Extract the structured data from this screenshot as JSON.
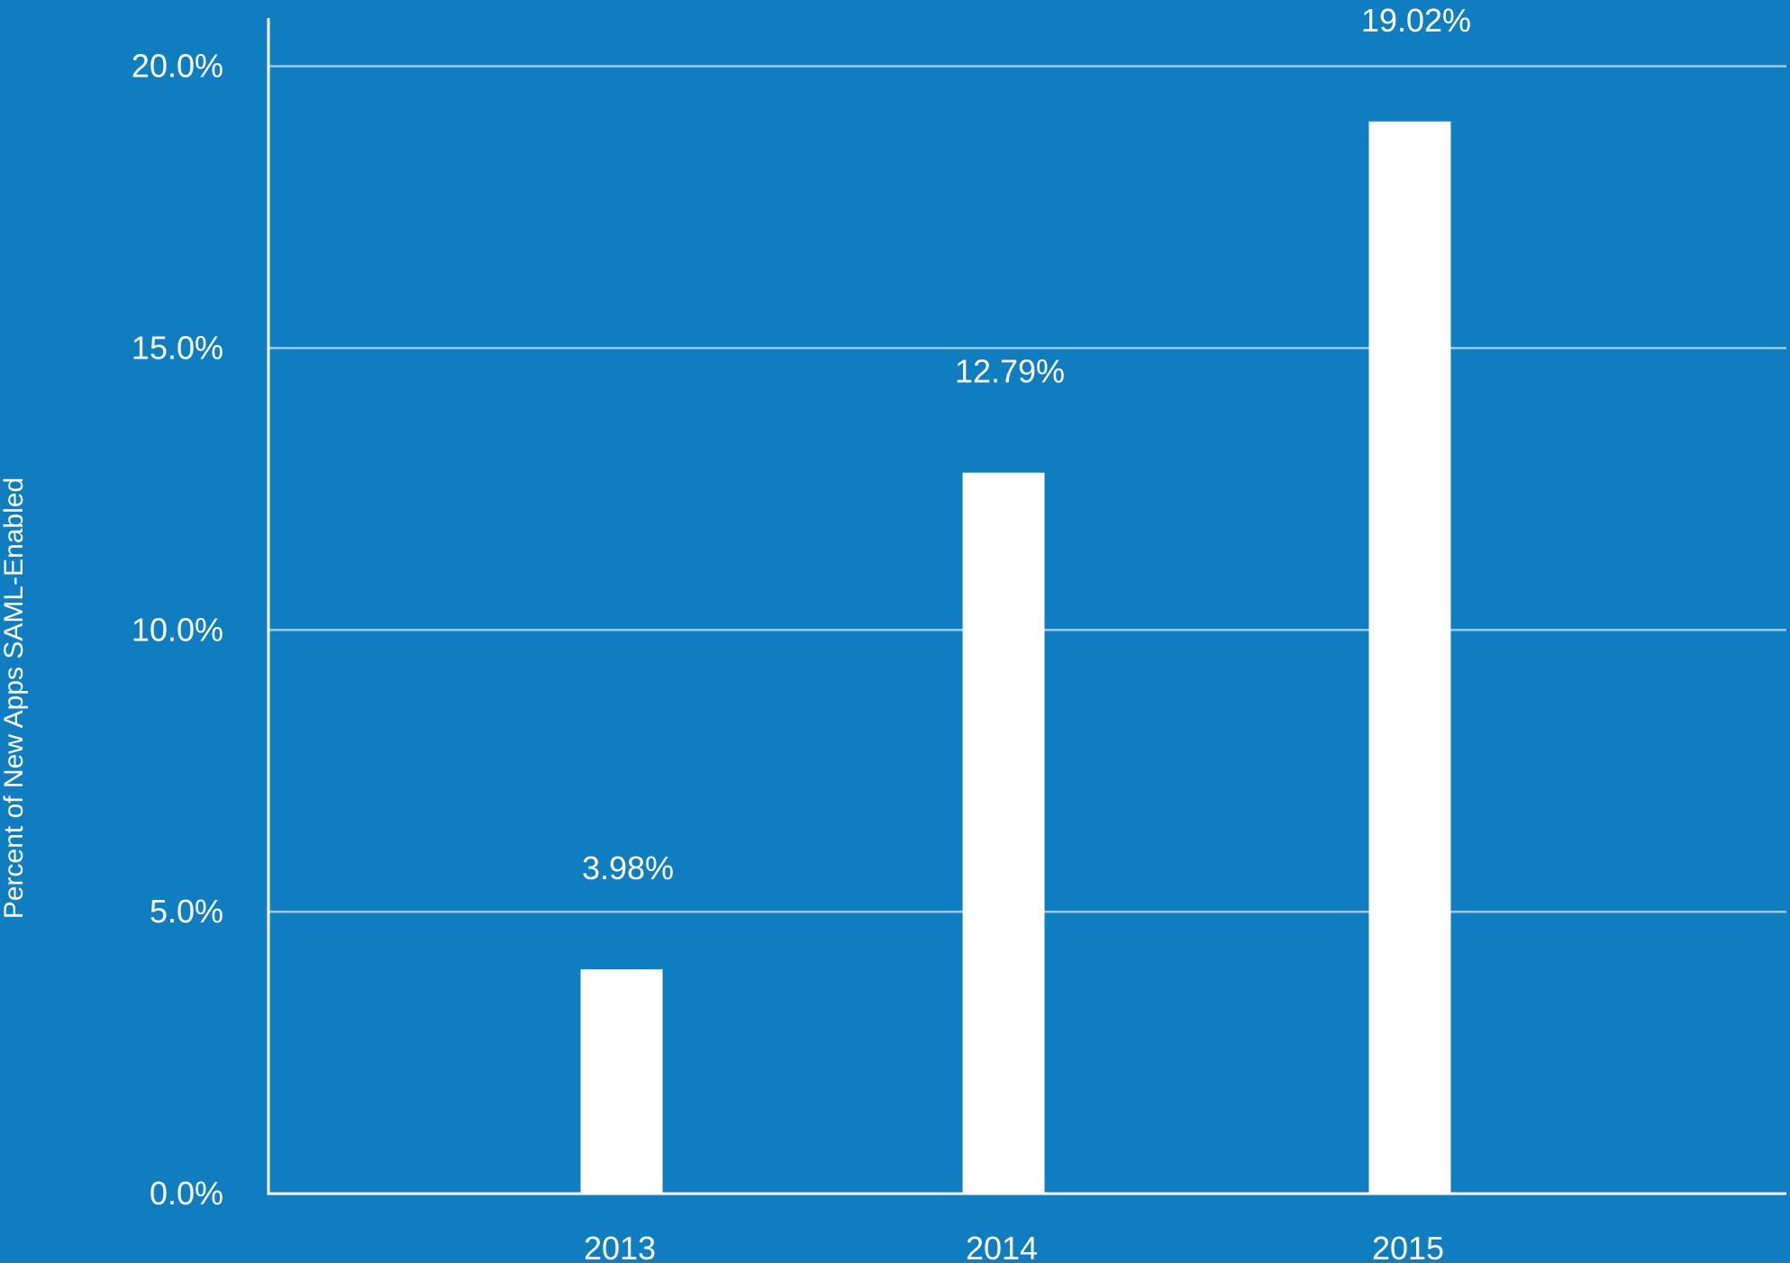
{
  "chart_data": {
    "type": "bar",
    "title": "",
    "xlabel": "",
    "ylabel": "Percent of New Apps SAML-Enabled",
    "categories": [
      "2013",
      "2014",
      "2015"
    ],
    "values": [
      3.98,
      12.79,
      19.02
    ],
    "data_labels": [
      "3.98%",
      "12.79%",
      "19.02%"
    ],
    "ylim": [
      0,
      20
    ],
    "yticks": [
      0,
      5,
      10,
      15,
      20
    ],
    "ytick_labels": [
      "0.0%",
      "5.0%",
      "10.0%",
      "15.0%",
      "20.0%"
    ],
    "grid": true,
    "legend": "none",
    "colors": {
      "background": "#117dc1",
      "bar": "#ffffff",
      "grid": "#9cc8e6",
      "axis": "#ffffff",
      "text": "#ffffff"
    }
  }
}
